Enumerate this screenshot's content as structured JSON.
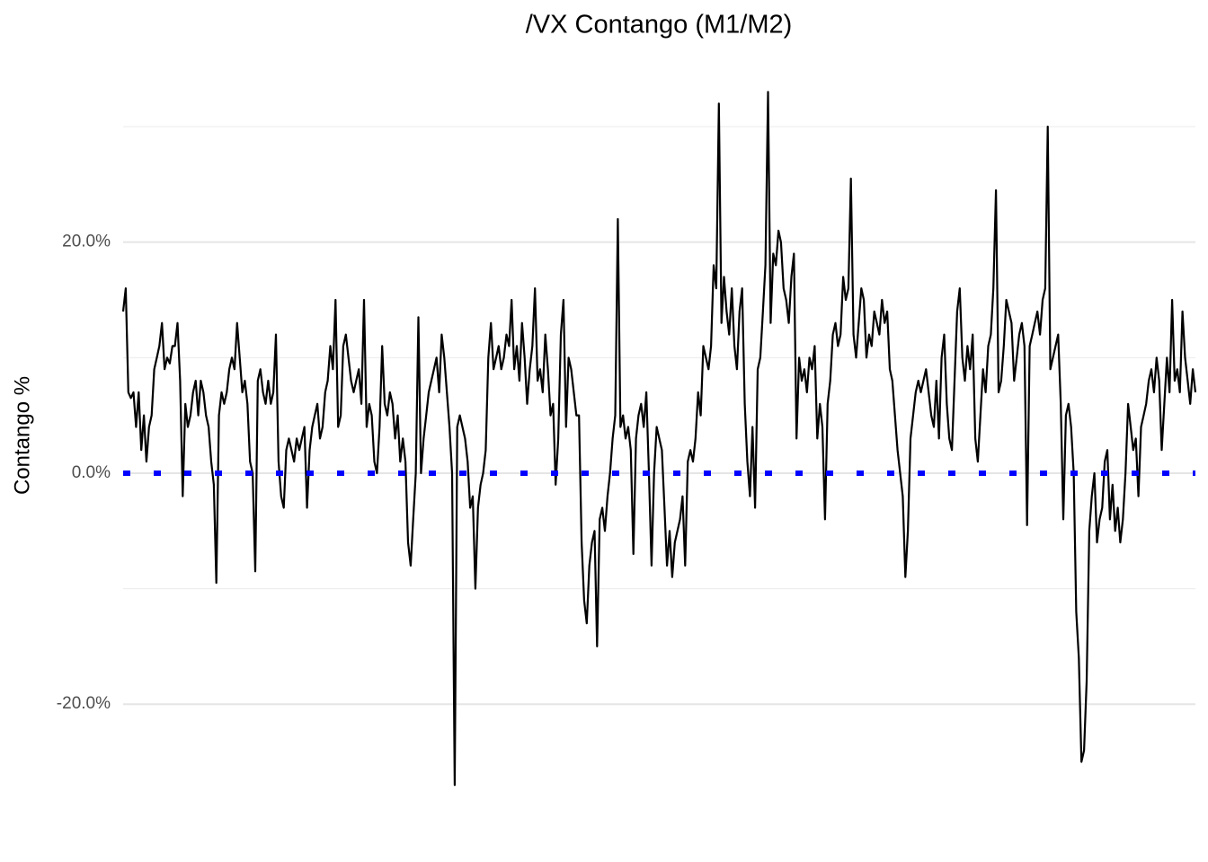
{
  "chart_data": {
    "type": "line",
    "title": "/VX Contango (M1/M2)",
    "y_label": "Contango %",
    "ylim": [
      -29.7,
      36.3
    ],
    "yticks": [
      {
        "value": -20,
        "label": "-20.0%"
      },
      {
        "value": 0,
        "label": "0.0%"
      },
      {
        "value": 20,
        "label": "20.0%"
      }
    ],
    "minor_yticks": [
      -10,
      10,
      30
    ],
    "grid": true,
    "hline": {
      "value": 0,
      "color": "#0000ff"
    },
    "series": [
      {
        "name": "Contango",
        "color": "#000000",
        "values": [
          14,
          16,
          7,
          6.5,
          7,
          4,
          7,
          2,
          5,
          1,
          4,
          5,
          9,
          10,
          11,
          13,
          9,
          10,
          9.5,
          11,
          11,
          13,
          8,
          -2,
          6,
          4,
          5,
          7,
          8,
          5,
          8,
          7,
          5,
          4,
          1,
          -1,
          -9.5,
          5,
          7,
          6,
          7,
          9,
          10,
          9,
          13,
          10,
          7,
          8,
          6,
          1,
          0,
          -8.5,
          8,
          9,
          7,
          6,
          8,
          6,
          7,
          12,
          1,
          -2,
          -3,
          2,
          3,
          2,
          1,
          3,
          2,
          3,
          4,
          -3,
          2,
          4,
          5,
          6,
          3,
          4,
          7,
          8,
          11,
          9,
          15,
          4,
          5,
          11,
          12,
          10,
          8,
          7,
          8,
          9,
          6,
          15,
          4,
          6,
          5,
          1,
          0,
          4,
          11,
          6,
          5,
          7,
          6,
          3,
          5,
          1,
          3,
          1,
          -6,
          -8,
          -4,
          0,
          13.5,
          0,
          3,
          5,
          7,
          8,
          9,
          10,
          7,
          12,
          10,
          7,
          4,
          0,
          -27,
          4,
          5,
          4,
          3,
          1,
          -3,
          -2,
          -10,
          -3,
          -1,
          0,
          2,
          10,
          13,
          9,
          10,
          11,
          9,
          10,
          12,
          11,
          15,
          9,
          11,
          8,
          13,
          10,
          6,
          9,
          11,
          16,
          8,
          9,
          7,
          12,
          9,
          5,
          6,
          -1,
          3,
          12,
          15,
          4,
          10,
          9,
          7,
          5,
          5,
          -6,
          -11,
          -13,
          -8,
          -6,
          -5,
          -15,
          -4,
          -3,
          -5,
          -2,
          0,
          3,
          5,
          22,
          4,
          5,
          3,
          4,
          2,
          -7,
          3,
          5,
          6,
          4,
          7,
          0,
          -8,
          0,
          4,
          3,
          2,
          -3,
          -8,
          -5,
          -9,
          -6,
          -5,
          -4,
          -2,
          -8,
          1,
          2,
          1,
          3,
          7,
          5,
          11,
          10,
          9,
          11,
          18,
          16,
          32,
          13,
          17,
          14,
          12,
          16,
          11,
          9,
          14,
          16,
          6,
          1,
          -2,
          4,
          -3,
          9,
          10,
          14,
          18,
          33,
          13,
          19,
          18,
          21,
          20,
          16,
          15,
          13,
          17,
          19,
          3,
          10,
          8,
          9,
          7,
          10,
          9,
          11,
          3,
          6,
          4,
          -4,
          6,
          8,
          12,
          13,
          11,
          12,
          17,
          15,
          16,
          25.5,
          12,
          10,
          13,
          16,
          15,
          10,
          12,
          11,
          14,
          13,
          12,
          15,
          13,
          14,
          9,
          8,
          5,
          2,
          0,
          -2,
          -9,
          -5,
          3,
          5,
          7,
          8,
          7,
          8,
          9,
          7,
          5,
          4,
          8,
          3,
          10,
          12,
          6,
          3,
          2,
          8,
          14,
          16,
          10,
          8,
          11,
          9,
          12,
          3,
          1,
          5,
          9,
          7,
          11,
          12,
          16,
          24.5,
          7,
          8,
          11,
          15,
          14,
          13,
          8,
          10,
          12,
          13,
          11,
          -4.5,
          11,
          12,
          13,
          14,
          12,
          15,
          16,
          30,
          9,
          10,
          11,
          12,
          6,
          -4,
          5,
          6,
          4,
          0,
          -12,
          -16,
          -25,
          -24,
          -18,
          -5,
          -2,
          0,
          -6,
          -4,
          -3,
          1,
          2,
          -4,
          -1,
          -5,
          -3,
          -6,
          -4,
          0,
          6,
          4,
          2,
          3,
          -2,
          4,
          5,
          6,
          8,
          9,
          7,
          10,
          8,
          2,
          6,
          10,
          7,
          15,
          8,
          9,
          7,
          14,
          10,
          8,
          6,
          9,
          7
        ]
      }
    ]
  }
}
